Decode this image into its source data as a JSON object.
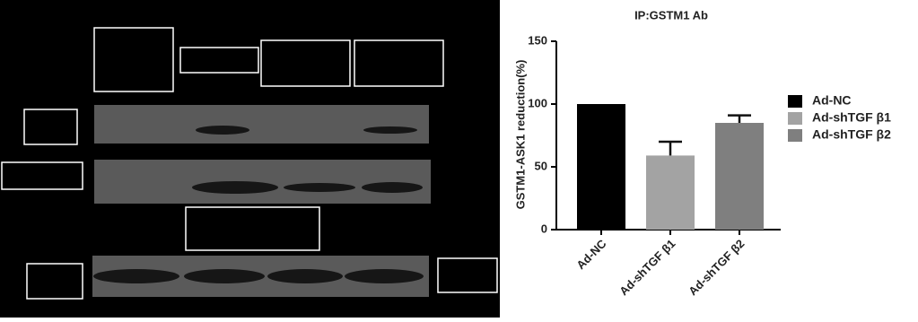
{
  "chart_data": {
    "type": "bar",
    "title": "IP:GSTM1 Ab",
    "y_label": "GSTM1-ASK1 reduction(%)",
    "categories": [
      "Ad-NC",
      "Ad-shTGF β1",
      "Ad-shTGF β2"
    ],
    "values": [
      100,
      59,
      85
    ],
    "errors": [
      null,
      11,
      6
    ],
    "colors": [
      "#000000",
      "#a3a3a3",
      "#7f7f7f"
    ],
    "ylim": [
      0,
      150
    ],
    "yticks": [
      0,
      50,
      100,
      150
    ],
    "legend": "right"
  }
}
